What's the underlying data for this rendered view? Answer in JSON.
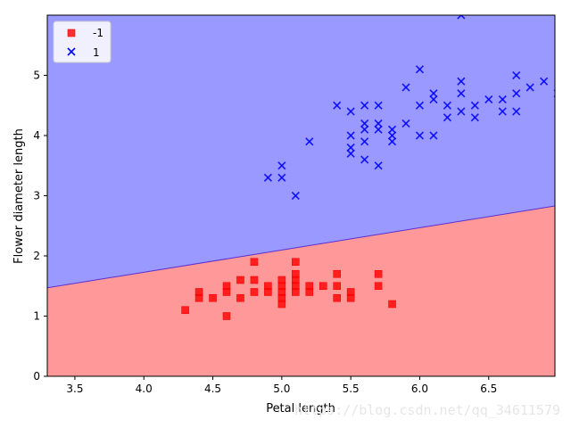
{
  "chart_data": {
    "type": "scatter",
    "title": "",
    "xlabel": "Petal length",
    "ylabel": "Flower diameter length",
    "xlim": [
      3.3,
      6.98
    ],
    "ylim": [
      0,
      6.0
    ],
    "xticks": [
      "3.5",
      "4.0",
      "4.5",
      "5.0",
      "5.5",
      "6.0",
      "6.5"
    ],
    "yticks": [
      "0",
      "1",
      "2",
      "3",
      "4",
      "5"
    ],
    "decision_boundary": {
      "x": [
        3.3,
        6.98
      ],
      "y": [
        1.47,
        2.83
      ],
      "region_below": {
        "label": "-1",
        "color": "#ff9999"
      },
      "region_above": {
        "label": "1",
        "color": "#9999ff"
      }
    },
    "series": [
      {
        "name": "-1",
        "marker": "square",
        "color": "#ff0000",
        "points": [
          [
            4.3,
            1.1
          ],
          [
            4.4,
            1.4
          ],
          [
            4.4,
            1.3
          ],
          [
            4.5,
            1.3
          ],
          [
            4.6,
            1.0
          ],
          [
            4.6,
            1.5
          ],
          [
            4.6,
            1.4
          ],
          [
            4.7,
            1.6
          ],
          [
            4.7,
            1.3
          ],
          [
            4.8,
            1.9
          ],
          [
            4.8,
            1.6
          ],
          [
            4.8,
            1.4
          ],
          [
            4.9,
            1.5
          ],
          [
            4.9,
            1.4
          ],
          [
            5.0,
            1.6
          ],
          [
            5.0,
            1.5
          ],
          [
            5.0,
            1.4
          ],
          [
            5.0,
            1.3
          ],
          [
            5.0,
            1.2
          ],
          [
            5.1,
            1.9
          ],
          [
            5.1,
            1.7
          ],
          [
            5.1,
            1.6
          ],
          [
            5.1,
            1.5
          ],
          [
            5.1,
            1.4
          ],
          [
            5.2,
            1.5
          ],
          [
            5.2,
            1.4
          ],
          [
            5.3,
            1.5
          ],
          [
            5.4,
            1.7
          ],
          [
            5.4,
            1.5
          ],
          [
            5.4,
            1.3
          ],
          [
            5.5,
            1.4
          ],
          [
            5.5,
            1.3
          ],
          [
            5.7,
            1.7
          ],
          [
            5.7,
            1.5
          ],
          [
            5.8,
            1.2
          ]
        ]
      },
      {
        "name": "1",
        "marker": "x",
        "color": "#0000ff",
        "points": [
          [
            4.9,
            3.3
          ],
          [
            5.0,
            3.5
          ],
          [
            5.0,
            3.3
          ],
          [
            5.1,
            3.0
          ],
          [
            5.2,
            3.9
          ],
          [
            5.4,
            4.5
          ],
          [
            5.5,
            4.4
          ],
          [
            5.5,
            4.0
          ],
          [
            5.5,
            3.8
          ],
          [
            5.5,
            3.7
          ],
          [
            5.6,
            4.5
          ],
          [
            5.6,
            4.2
          ],
          [
            5.6,
            4.1
          ],
          [
            5.6,
            3.9
          ],
          [
            5.6,
            3.6
          ],
          [
            5.7,
            4.5
          ],
          [
            5.7,
            4.2
          ],
          [
            5.7,
            4.1
          ],
          [
            5.7,
            3.5
          ],
          [
            5.8,
            4.1
          ],
          [
            5.8,
            4.0
          ],
          [
            5.8,
            3.9
          ],
          [
            5.9,
            4.8
          ],
          [
            5.9,
            4.2
          ],
          [
            6.0,
            5.1
          ],
          [
            6.0,
            4.5
          ],
          [
            6.0,
            4.0
          ],
          [
            6.1,
            4.7
          ],
          [
            6.1,
            4.6
          ],
          [
            6.1,
            4.0
          ],
          [
            6.2,
            4.5
          ],
          [
            6.2,
            4.3
          ],
          [
            6.3,
            6.0
          ],
          [
            6.3,
            4.9
          ],
          [
            6.3,
            4.7
          ],
          [
            6.3,
            4.4
          ],
          [
            6.4,
            4.5
          ],
          [
            6.4,
            4.3
          ],
          [
            6.5,
            4.6
          ],
          [
            6.6,
            4.6
          ],
          [
            6.6,
            4.4
          ],
          [
            6.7,
            5.0
          ],
          [
            6.7,
            4.7
          ],
          [
            6.7,
            4.4
          ],
          [
            6.8,
            4.8
          ],
          [
            6.9,
            4.9
          ],
          [
            7.0,
            4.7
          ]
        ]
      }
    ],
    "legend": {
      "location": "top-left",
      "entries": [
        {
          "label": "-1",
          "marker": "square",
          "color": "#ff0000"
        },
        {
          "label": "1",
          "marker": "x",
          "color": "#0000ff"
        }
      ]
    }
  },
  "watermark": "https://blog.csdn.net/qq_34611579"
}
